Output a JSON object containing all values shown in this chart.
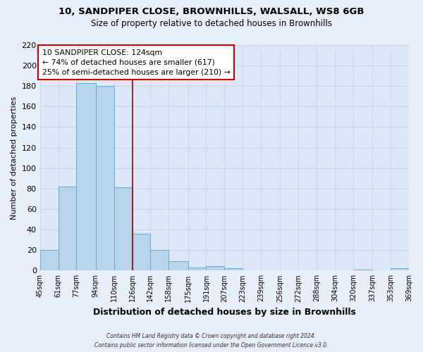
{
  "title": "10, SANDPIPER CLOSE, BROWNHILLS, WALSALL, WS8 6GB",
  "subtitle": "Size of property relative to detached houses in Brownhills",
  "xlabel": "Distribution of detached houses by size in Brownhills",
  "ylabel": "Number of detached properties",
  "bar_edges": [
    45,
    61,
    77,
    94,
    110,
    126,
    142,
    158,
    175,
    191,
    207,
    223,
    239,
    256,
    272,
    288,
    304,
    320,
    337,
    353,
    369
  ],
  "bar_heights": [
    20,
    82,
    183,
    180,
    81,
    36,
    20,
    9,
    3,
    4,
    2,
    0,
    0,
    0,
    0,
    0,
    0,
    1,
    0,
    2
  ],
  "bar_color": "#b8d4ea",
  "bar_edgecolor": "#6aaad4",
  "property_line_x": 126,
  "property_line_color": "#990000",
  "ylim": [
    0,
    220
  ],
  "yticks": [
    0,
    20,
    40,
    60,
    80,
    100,
    120,
    140,
    160,
    180,
    200,
    220
  ],
  "annotation_title": "10 SANDPIPER CLOSE: 124sqm",
  "annotation_line1": "← 74% of detached houses are smaller (617)",
  "annotation_line2": "25% of semi-detached houses are larger (210) →",
  "annotation_box_facecolor": "#ffffff",
  "annotation_box_edgecolor": "#cc0000",
  "footer1": "Contains HM Land Registry data © Crown copyright and database right 2024.",
  "footer2": "Contains public sector information licensed under the Open Government Licence v3.0.",
  "tick_labels": [
    "45sqm",
    "61sqm",
    "77sqm",
    "94sqm",
    "110sqm",
    "126sqm",
    "142sqm",
    "158sqm",
    "175sqm",
    "191sqm",
    "207sqm",
    "223sqm",
    "239sqm",
    "256sqm",
    "272sqm",
    "288sqm",
    "304sqm",
    "320sqm",
    "337sqm",
    "353sqm",
    "369sqm"
  ],
  "background_color": "#e8eef8",
  "grid_color": "#c8d8ee",
  "plot_bg_color": "#dce8f5"
}
